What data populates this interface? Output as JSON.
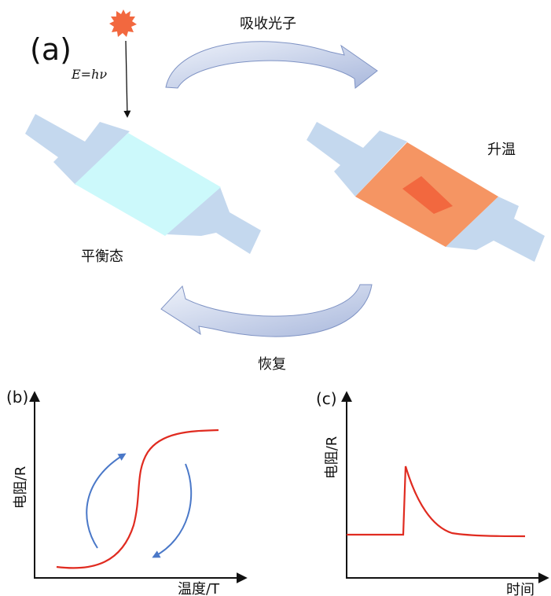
{
  "panel_a": {
    "label": "(a)",
    "energy_formula": "E=hν",
    "absorb_photon": "吸收光子",
    "heating": "升温",
    "equilibrium": "平衡态",
    "recovery": "恢复"
  },
  "panel_b": {
    "label": "(b)",
    "ylabel": "电阻/R",
    "xlabel": "温度/T"
  },
  "panel_c": {
    "label": "(c)",
    "ylabel": "电阻/R",
    "xlabel": "时间"
  },
  "colors": {
    "device_pad": "#c4d8ee",
    "device_cool": "#ccf9fb",
    "device_hot": "#f59563",
    "hot_spot": "#f2683f",
    "photon": "#f2683f",
    "curve": "#e02b20",
    "cycle_arrow": "#4a78c8",
    "big_arrow_fill": "#d6e0f0",
    "big_arrow_edge": "#7f93c4"
  }
}
